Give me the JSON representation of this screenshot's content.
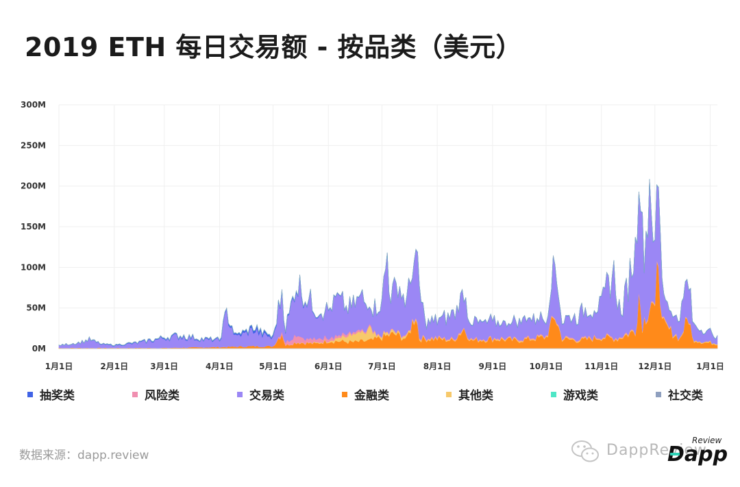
{
  "title": "2019 ETH 每日交易额 - 按品类（美元）",
  "source": "数据来源：dapp.review",
  "watermark": {
    "text": "DappReview",
    "logo_top": "Review",
    "logo_main": "Dapp"
  },
  "chart_data": {
    "type": "area",
    "stacked": true,
    "title": "2019 ETH 每日交易额 - 按品类（美元）",
    "xlabel": "",
    "ylabel": "",
    "ylim": [
      0,
      300
    ],
    "y_unit": "M",
    "yticks": [
      "0M",
      "50M",
      "100M",
      "150M",
      "200M",
      "250M",
      "300M"
    ],
    "x_range": [
      "2019-01-01",
      "2020-01-05"
    ],
    "xticks": [
      {
        "date": "2019-01-01",
        "label": "1月1日"
      },
      {
        "date": "2019-02-01",
        "label": "2月1日"
      },
      {
        "date": "2019-03-01",
        "label": "3月1日"
      },
      {
        "date": "2019-04-01",
        "label": "4月1日"
      },
      {
        "date": "2019-05-01",
        "label": "5月1日"
      },
      {
        "date": "2019-06-01",
        "label": "6月1日"
      },
      {
        "date": "2019-07-01",
        "label": "7月1日"
      },
      {
        "date": "2019-08-01",
        "label": "8月1日"
      },
      {
        "date": "2019-09-01",
        "label": "9月1日"
      },
      {
        "date": "2019-10-01",
        "label": "10月1日"
      },
      {
        "date": "2019-11-01",
        "label": "11月1日"
      },
      {
        "date": "2019-12-01",
        "label": "12月1日"
      },
      {
        "date": "2020-01-01",
        "label": "1月1日"
      }
    ],
    "grid": true,
    "legend_position": "bottom",
    "series": [
      {
        "name": "金融类",
        "color": "#ff8a1a",
        "points": [
          [
            "2019-01-01",
            1
          ],
          [
            "2019-01-15",
            1
          ],
          [
            "2019-02-01",
            1
          ],
          [
            "2019-03-01",
            1
          ],
          [
            "2019-04-01",
            2
          ],
          [
            "2019-04-20",
            3
          ],
          [
            "2019-05-01",
            3
          ],
          [
            "2019-05-06",
            20
          ],
          [
            "2019-05-08",
            4
          ],
          [
            "2019-05-14",
            8
          ],
          [
            "2019-05-25",
            6
          ],
          [
            "2019-06-01",
            10
          ],
          [
            "2019-06-15",
            8
          ],
          [
            "2019-06-25",
            10
          ],
          [
            "2019-07-01",
            14
          ],
          [
            "2019-07-08",
            18
          ],
          [
            "2019-07-15",
            12
          ],
          [
            "2019-07-20",
            45
          ],
          [
            "2019-07-22",
            12
          ],
          [
            "2019-08-01",
            12
          ],
          [
            "2019-08-10",
            10
          ],
          [
            "2019-08-16",
            25
          ],
          [
            "2019-08-20",
            10
          ],
          [
            "2019-09-01",
            12
          ],
          [
            "2019-09-15",
            10
          ],
          [
            "2019-10-01",
            14
          ],
          [
            "2019-10-06",
            40
          ],
          [
            "2019-10-10",
            12
          ],
          [
            "2019-10-20",
            10
          ],
          [
            "2019-11-01",
            14
          ],
          [
            "2019-11-10",
            12
          ],
          [
            "2019-11-20",
            22
          ],
          [
            "2019-11-22",
            70
          ],
          [
            "2019-11-24",
            30
          ],
          [
            "2019-11-29",
            60
          ],
          [
            "2019-12-01",
            40
          ],
          [
            "2019-12-03",
            130
          ],
          [
            "2019-12-05",
            30
          ],
          [
            "2019-12-15",
            12
          ],
          [
            "2019-12-20",
            40
          ],
          [
            "2019-12-22",
            12
          ],
          [
            "2019-12-28",
            8
          ],
          [
            "2020-01-05",
            6
          ]
        ]
      },
      {
        "name": "其他类",
        "color": "#f7c96b",
        "points": [
          [
            "2019-01-01",
            0
          ],
          [
            "2019-05-01",
            0
          ],
          [
            "2019-06-01",
            1
          ],
          [
            "2019-06-25",
            15
          ],
          [
            "2019-06-28",
            2
          ],
          [
            "2019-07-01",
            3
          ],
          [
            "2019-08-01",
            1
          ],
          [
            "2019-09-01",
            1
          ],
          [
            "2019-10-01",
            1
          ],
          [
            "2019-11-01",
            1
          ],
          [
            "2019-12-01",
            1
          ],
          [
            "2020-01-05",
            1
          ]
        ]
      },
      {
        "name": "风险类",
        "color": "#f08fb0",
        "points": [
          [
            "2019-01-01",
            0
          ],
          [
            "2019-05-01",
            0
          ],
          [
            "2019-05-14",
            8
          ],
          [
            "2019-05-25",
            5
          ],
          [
            "2019-06-01",
            4
          ],
          [
            "2019-06-20",
            2
          ],
          [
            "2019-07-01",
            1
          ],
          [
            "2019-09-01",
            1
          ],
          [
            "2019-12-01",
            1
          ],
          [
            "2020-01-05",
            0
          ]
        ]
      },
      {
        "name": "交易类",
        "color": "#9b87f5",
        "points": [
          [
            "2019-01-01",
            3
          ],
          [
            "2019-01-12",
            6
          ],
          [
            "2019-01-18",
            10
          ],
          [
            "2019-01-25",
            4
          ],
          [
            "2019-02-01",
            3
          ],
          [
            "2019-02-15",
            6
          ],
          [
            "2019-03-01",
            12
          ],
          [
            "2019-03-10",
            14
          ],
          [
            "2019-03-20",
            10
          ],
          [
            "2019-04-01",
            8
          ],
          [
            "2019-04-05",
            40
          ],
          [
            "2019-04-10",
            12
          ],
          [
            "2019-04-20",
            20
          ],
          [
            "2019-04-28",
            12
          ],
          [
            "2019-05-01",
            10
          ],
          [
            "2019-05-06",
            50
          ],
          [
            "2019-05-08",
            15
          ],
          [
            "2019-05-14",
            65
          ],
          [
            "2019-05-20",
            50
          ],
          [
            "2019-05-25",
            35
          ],
          [
            "2019-06-01",
            35
          ],
          [
            "2019-06-06",
            45
          ],
          [
            "2019-06-12",
            30
          ],
          [
            "2019-06-20",
            40
          ],
          [
            "2019-06-25",
            25
          ],
          [
            "2019-07-01",
            40
          ],
          [
            "2019-07-04",
            95
          ],
          [
            "2019-07-06",
            40
          ],
          [
            "2019-07-10",
            60
          ],
          [
            "2019-07-15",
            40
          ],
          [
            "2019-07-19",
            75
          ],
          [
            "2019-07-22",
            60
          ],
          [
            "2019-07-25",
            20
          ],
          [
            "2019-08-01",
            20
          ],
          [
            "2019-08-10",
            30
          ],
          [
            "2019-08-16",
            45
          ],
          [
            "2019-08-20",
            20
          ],
          [
            "2019-09-01",
            20
          ],
          [
            "2019-09-10",
            18
          ],
          [
            "2019-09-20",
            25
          ],
          [
            "2019-10-01",
            20
          ],
          [
            "2019-10-06",
            65
          ],
          [
            "2019-10-10",
            20
          ],
          [
            "2019-10-20",
            30
          ],
          [
            "2019-11-01",
            40
          ],
          [
            "2019-11-08",
            80
          ],
          [
            "2019-11-12",
            25
          ],
          [
            "2019-11-20",
            100
          ],
          [
            "2019-11-22",
            180
          ],
          [
            "2019-11-25",
            80
          ],
          [
            "2019-11-28",
            160
          ],
          [
            "2019-12-01",
            60
          ],
          [
            "2019-12-03",
            100
          ],
          [
            "2019-12-06",
            30
          ],
          [
            "2019-12-12",
            20
          ],
          [
            "2019-12-20",
            45
          ],
          [
            "2019-12-22",
            20
          ],
          [
            "2019-12-28",
            15
          ],
          [
            "2020-01-05",
            8
          ]
        ]
      },
      {
        "name": "抽奖类",
        "color": "#4063e6",
        "points": [
          [
            "2019-01-01",
            0
          ],
          [
            "2019-02-01",
            0.5
          ],
          [
            "2019-03-01",
            1
          ],
          [
            "2019-04-01",
            1
          ],
          [
            "2019-04-20",
            3
          ],
          [
            "2019-05-01",
            2
          ],
          [
            "2019-06-01",
            0.5
          ],
          [
            "2019-07-01",
            0.3
          ],
          [
            "2020-01-05",
            0.2
          ]
        ]
      },
      {
        "name": "游戏类",
        "color": "#4ee6c6",
        "points": [
          [
            "2019-01-01",
            0.2
          ],
          [
            "2020-01-05",
            0.2
          ]
        ]
      },
      {
        "name": "社交类",
        "color": "#8fa0bf",
        "points": [
          [
            "2019-01-01",
            0.1
          ],
          [
            "2020-01-05",
            0.1
          ]
        ]
      }
    ]
  },
  "legend": [
    {
      "label": "抽奖类",
      "color": "#4063e6"
    },
    {
      "label": "风险类",
      "color": "#f08fb0"
    },
    {
      "label": "交易类",
      "color": "#9b87f5"
    },
    {
      "label": "金融类",
      "color": "#ff8a1a"
    },
    {
      "label": "其他类",
      "color": "#f7c96b"
    },
    {
      "label": "游戏类",
      "color": "#4ee6c6"
    },
    {
      "label": "社交类",
      "color": "#8fa0bf"
    }
  ]
}
